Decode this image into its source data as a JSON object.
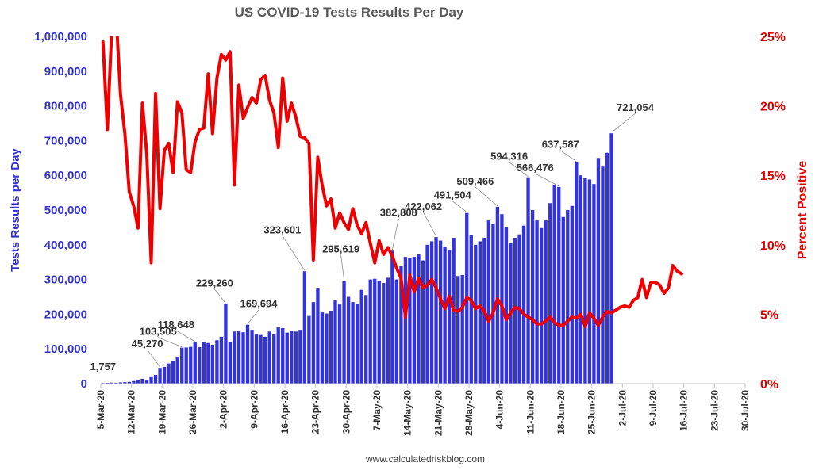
{
  "chart_data": {
    "type": "bar",
    "title": "US COVID-19 Tests Results Per Day",
    "ylabel": "Tests Results per Day",
    "y2label": "Percent Positive",
    "source": "www.calculatedriskblog.com",
    "ylim": [
      0,
      1000000
    ],
    "y2lim": [
      0,
      25
    ],
    "grid": false,
    "bar_color": "#3333dd",
    "line_color": "#ee0000",
    "y_ticks": [
      "0",
      "100,000",
      "200,000",
      "300,000",
      "400,000",
      "500,000",
      "600,000",
      "700,000",
      "800,000",
      "900,000",
      "1,000,000"
    ],
    "y2_ticks": [
      "0%",
      "5%",
      "10%",
      "15%",
      "20%",
      "25%"
    ],
    "x_ticks": [
      "5-Mar-20",
      "12-Mar-20",
      "19-Mar-20",
      "26-Mar-20",
      "2-Apr-20",
      "9-Apr-20",
      "16-Apr-20",
      "23-Apr-20",
      "30-Apr-20",
      "7-May-20",
      "14-May-20",
      "21-May-20",
      "28-May-20",
      "4-Jun-20",
      "11-Jun-20",
      "18-Jun-20",
      "25-Jun-20",
      "2-Jul-20",
      "9-Jul-20",
      "16-Jul-20",
      "23-Jul-20",
      "30-Jul-20"
    ],
    "x_range_days": [
      0,
      147
    ],
    "series": [
      {
        "name": "Tests Results per Day",
        "axis": "left",
        "start_date": "5-Mar-20",
        "values": [
          1757,
          2200,
          3000,
          2500,
          3500,
          4200,
          5000,
          7500,
          11000,
          14000,
          9000,
          21000,
          25000,
          45270,
          48000,
          58000,
          66000,
          78000,
          103505,
          104000,
          106000,
          118648,
          105000,
          120000,
          117000,
          112000,
          125000,
          135000,
          229260,
          120000,
          150000,
          152000,
          148000,
          169694,
          155000,
          143000,
          140000,
          135000,
          150000,
          142000,
          162000,
          160000,
          147000,
          152000,
          150000,
          155000,
          323601,
          195000,
          235000,
          276000,
          207000,
          202000,
          210000,
          240000,
          228000,
          295619,
          250000,
          235000,
          230000,
          270000,
          255000,
          300000,
          302000,
          295000,
          290000,
          305000,
          382808,
          300000,
          340000,
          365000,
          361000,
          365000,
          372000,
          355000,
          400000,
          410000,
          422062,
          412000,
          395000,
          385000,
          420000,
          310000,
          313000,
          491504,
          428000,
          400000,
          410000,
          420000,
          470000,
          460000,
          509466,
          488000,
          450000,
          405000,
          420000,
          430000,
          455000,
          594316,
          500000,
          470000,
          448000,
          470000,
          520000,
          572000,
          566476,
          480000,
          500000,
          512000,
          637587,
          600000,
          592000,
          588000,
          575000,
          650000,
          625000,
          665000,
          721054
        ]
      },
      {
        "name": "Percent Positive",
        "axis": "right",
        "start_date": "5-Mar-20",
        "values": [
          24.6,
          18.3,
          25.5,
          26.5,
          20.8,
          18.0,
          13.8,
          12.8,
          11.2,
          20.2,
          16.5,
          8.7,
          20.9,
          12.6,
          16.8,
          17.3,
          15.2,
          20.3,
          19.5,
          15.4,
          15.2,
          17.4,
          18.3,
          18.4,
          22.3,
          18.0,
          22.0,
          23.7,
          23.3,
          23.9,
          14.3,
          21.5,
          19.1,
          19.9,
          20.6,
          20.2,
          21.9,
          22.2,
          20.4,
          19.5,
          17.0,
          22.0,
          18.9,
          20.2,
          19.2,
          17.8,
          17.7,
          17.3,
          8.9,
          16.3,
          14.3,
          12.8,
          13.3,
          11.2,
          12.3,
          11.6,
          11.1,
          12.6,
          11.4,
          10.8,
          11.6,
          10.1,
          8.7,
          10.3,
          9.3,
          9.8,
          9.2,
          8.3,
          7.6,
          4.8,
          7.8,
          6.6,
          7.6,
          6.9,
          7.1,
          7.5,
          6.9,
          6.1,
          5.4,
          6.3,
          5.3,
          5.2,
          5.5,
          6.2,
          6.0,
          5.4,
          5.6,
          5.2,
          4.5,
          5.1,
          6.1,
          5.6,
          4.6,
          5.1,
          5.5,
          5.4,
          5.0,
          4.8,
          4.6,
          4.3,
          4.3,
          4.5,
          4.8,
          4.4,
          4.2,
          4.2,
          4.5,
          4.8,
          4.7,
          5.0,
          4.1,
          5.1,
          4.7,
          4.2,
          4.8,
          5.2,
          5.1,
          5.3,
          5.5,
          5.6,
          5.5,
          6.0,
          6.2,
          7.5,
          6.2,
          7.3,
          7.3,
          7.1,
          6.5,
          6.9,
          8.5,
          8.1,
          7.9
        ]
      }
    ],
    "bar_labels": [
      {
        "label": "1,757",
        "index": 0,
        "value": 1757
      },
      {
        "label": "45,270",
        "index": 13,
        "value": 45270
      },
      {
        "label": "103,505",
        "index": 18,
        "value": 103505
      },
      {
        "label": "118,648",
        "index": 21,
        "value": 118648
      },
      {
        "label": "229,260",
        "index": 28,
        "value": 229260
      },
      {
        "label": "169,694",
        "index": 33,
        "value": 169694
      },
      {
        "label": "323,601",
        "index": 46,
        "value": 323601
      },
      {
        "label": "295,619",
        "index": 55,
        "value": 295619
      },
      {
        "label": "382,808",
        "index": 66,
        "value": 382808
      },
      {
        "label": "422,062",
        "index": 76,
        "value": 422062
      },
      {
        "label": "491,504",
        "index": 83,
        "value": 491504
      },
      {
        "label": "509,466",
        "index": 90,
        "value": 509466
      },
      {
        "label": "594,316",
        "index": 97,
        "value": 594316
      },
      {
        "label": "566,476",
        "index": 104,
        "value": 566476
      },
      {
        "label": "637,587",
        "index": 108,
        "value": 637587
      },
      {
        "label": "721,054",
        "index": 116,
        "value": 721054
      }
    ]
  }
}
